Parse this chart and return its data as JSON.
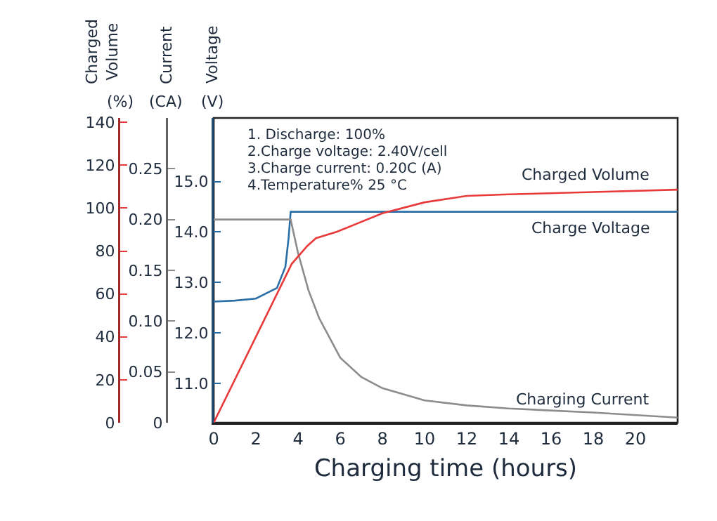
{
  "chart_data": {
    "type": "line",
    "xlabel": "Charging time (hours)",
    "ylabel": "Voltage (V)",
    "y2label": "Current (CA)",
    "y3label": "Charged Volume (%)",
    "annotations": [
      "1. Discharge: 100%",
      "2.Charge voltage: 2.40V/cell",
      "3.Charge current: 0.20C (A)",
      "4.Temperature% 25 °C"
    ],
    "xlim": [
      0,
      22
    ],
    "xticks": [
      0,
      2,
      4,
      6,
      8,
      10,
      12,
      14,
      16,
      18,
      20
    ],
    "ylim": [
      10.22,
      16.26
    ],
    "yticks": [
      {
        "value": 11,
        "label": "11.0"
      },
      {
        "value": 12,
        "label": "12.0"
      },
      {
        "value": 13,
        "label": "13.0"
      },
      {
        "value": 14,
        "label": "14.0"
      },
      {
        "value": 15,
        "label": "15.0"
      }
    ],
    "y2lim": [
      0,
      0.3
    ],
    "y2ticks": [
      {
        "value": 0,
        "label": "0"
      },
      {
        "value": 0.05,
        "label": "0.05"
      },
      {
        "value": 0.1,
        "label": "0.10"
      },
      {
        "value": 0.15,
        "label": "0.15"
      },
      {
        "value": 0.2,
        "label": "0.20"
      },
      {
        "value": 0.25,
        "label": "0.25"
      }
    ],
    "y3lim": [
      0,
      142
    ],
    "y3ticks": [
      0,
      20,
      40,
      60,
      80,
      100,
      120,
      140
    ],
    "grid": false,
    "legend": false,
    "marker": "none",
    "line_style": "solid",
    "series": [
      {
        "name": "Charged Volume",
        "color": "#e83a3a",
        "axis": "y3",
        "x": [
          0,
          3.7,
          4.44,
          4.85,
          5.85,
          8,
          10,
          12,
          14,
          18,
          22
        ],
        "values": [
          0,
          74,
          82.4,
          86,
          89,
          97.6,
          102.7,
          105.7,
          106.4,
          107.5,
          108.6
        ]
      },
      {
        "name": "Charge Voltage",
        "color": "#2a6ea6",
        "x": [
          0,
          1,
          2,
          3,
          3.4,
          3.55,
          3.65,
          22
        ],
        "values": [
          12.62,
          12.64,
          12.68,
          12.89,
          13.31,
          13.87,
          14.4,
          14.4
        ]
      },
      {
        "name": "Charging Current",
        "color": "#8c8c8c",
        "axis": "y2",
        "x": [
          0,
          3.65,
          4,
          4.5,
          5,
          6,
          7,
          8,
          10,
          12,
          14,
          18,
          22
        ],
        "values": [
          0.2,
          0.2,
          0.167,
          0.13,
          0.103,
          0.064,
          0.045,
          0.034,
          0.022,
          0.017,
          0.014,
          0.01,
          0.005
        ]
      }
    ]
  }
}
